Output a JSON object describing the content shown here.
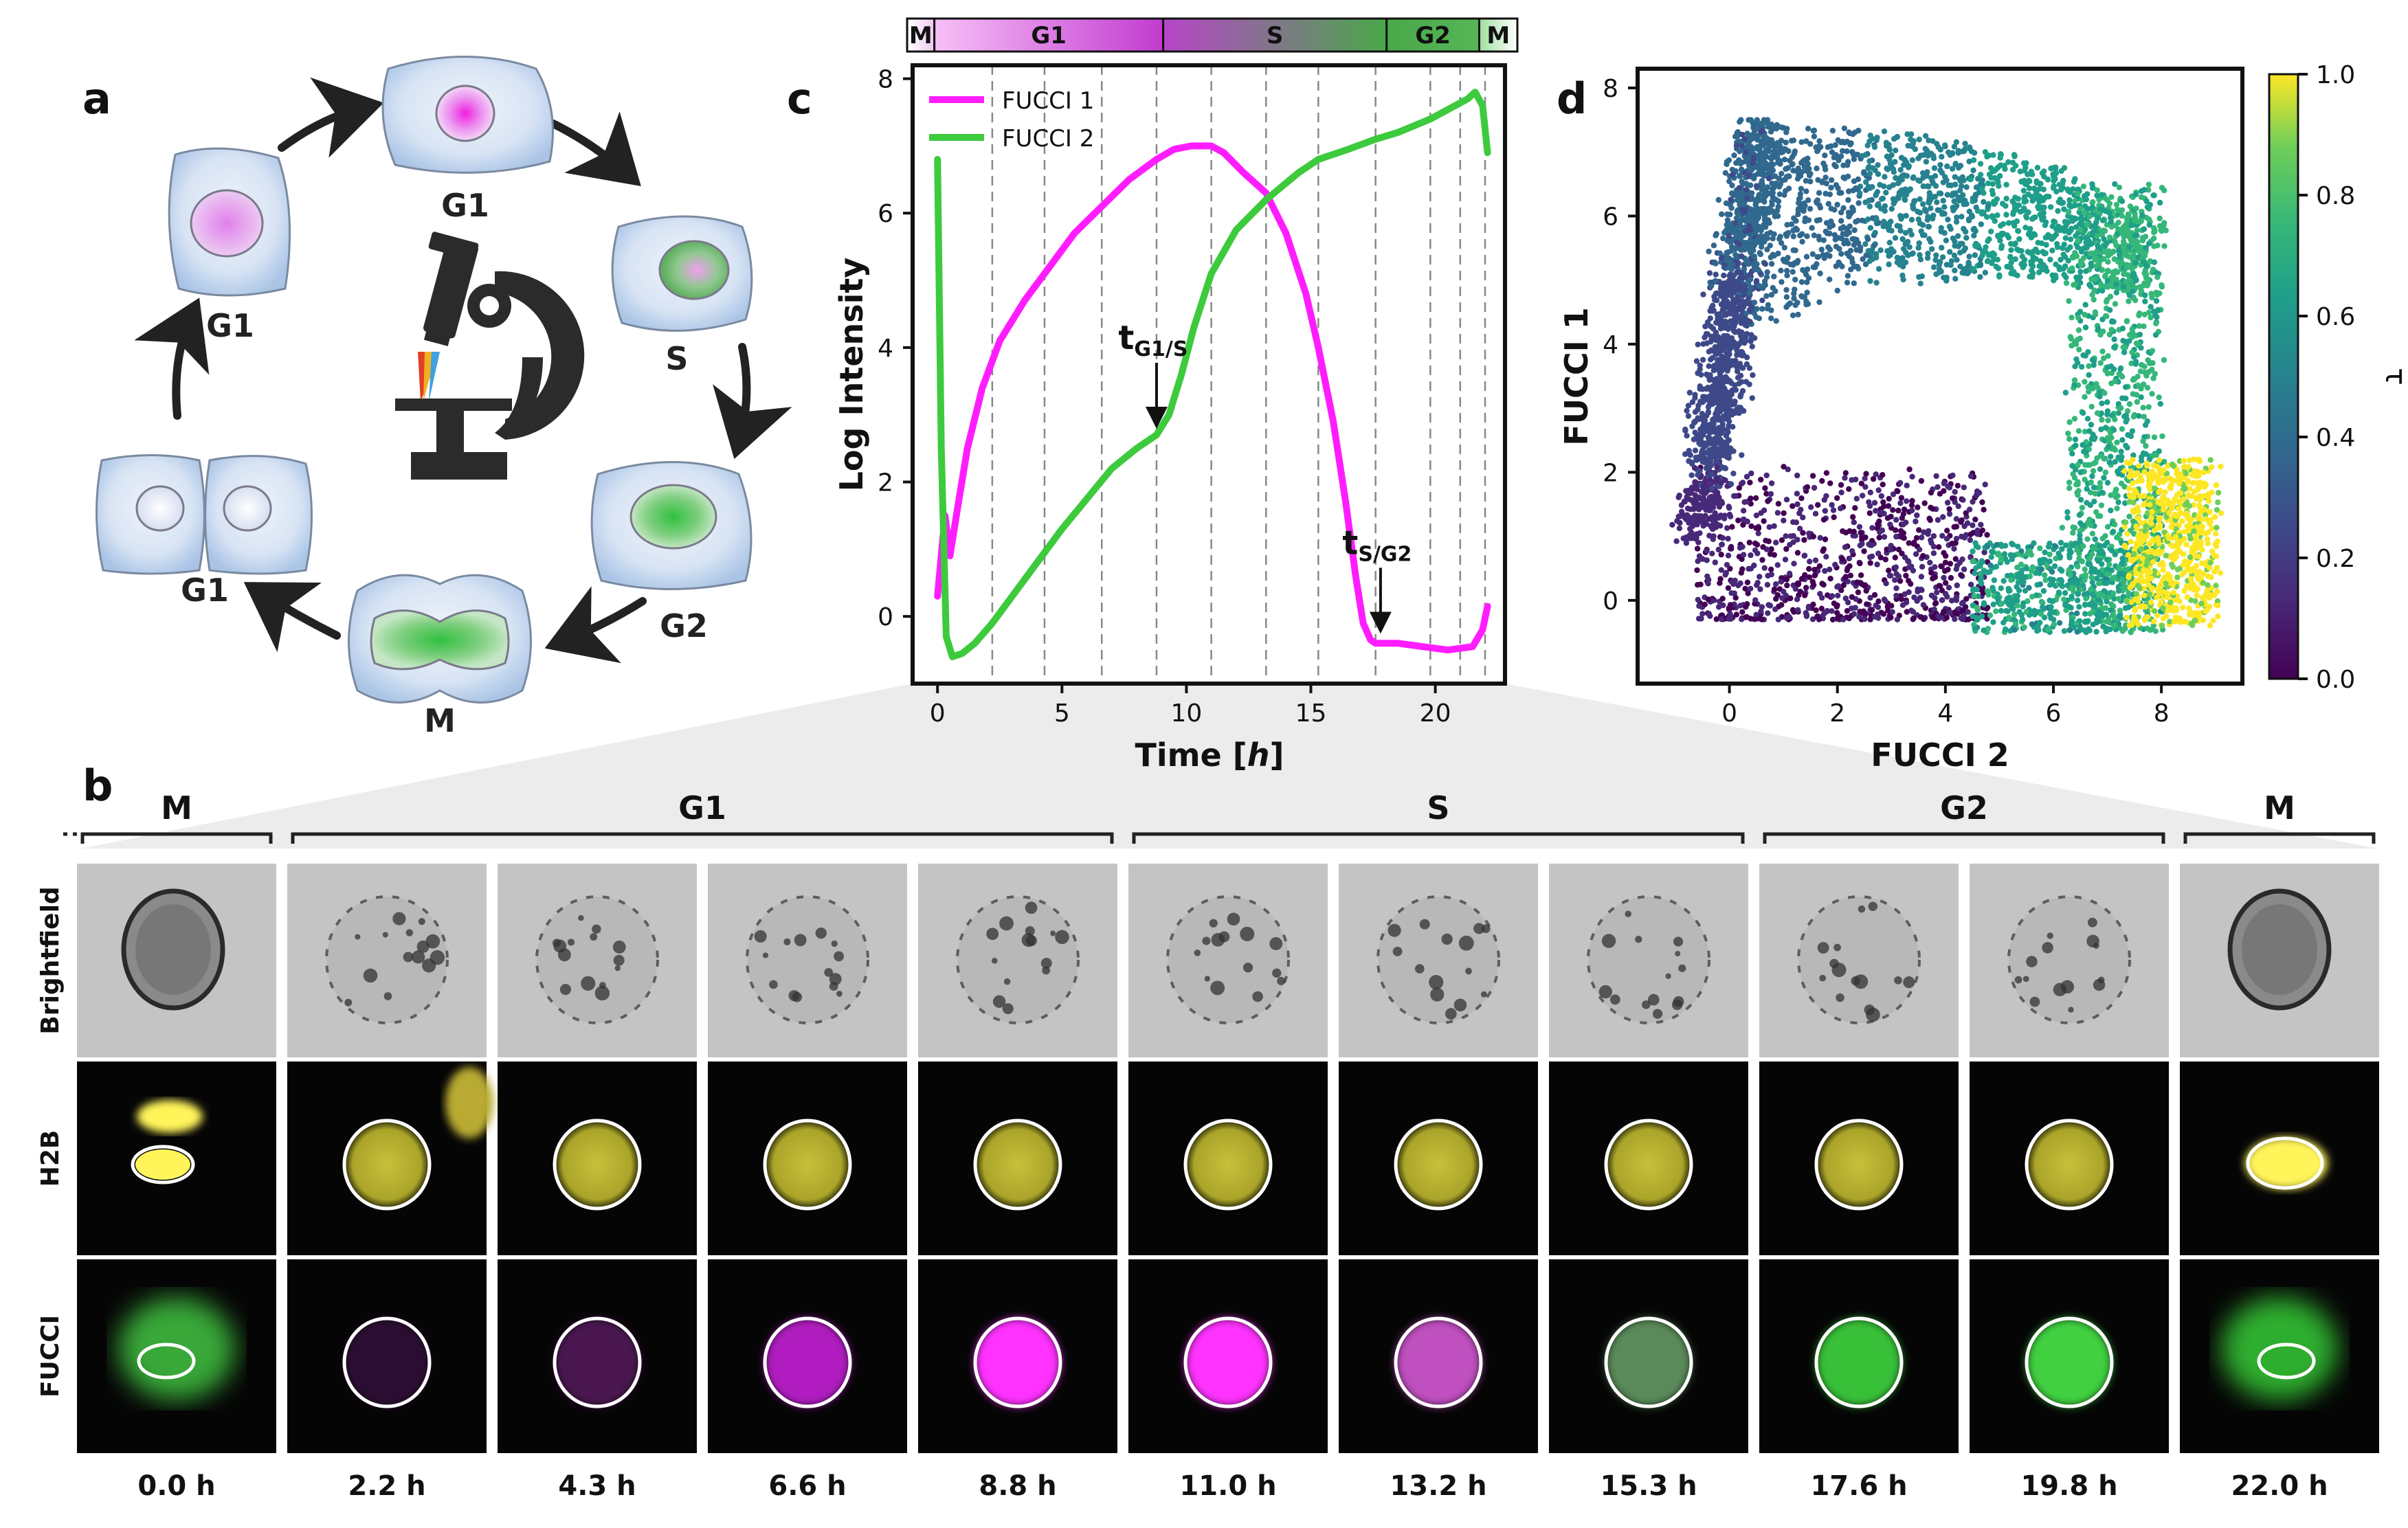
{
  "panels": {
    "a": "a",
    "b": "b",
    "c": "c",
    "d": "d"
  },
  "cycle": {
    "labels": [
      "G1",
      "S",
      "G2",
      "M",
      "G1",
      "G1"
    ]
  },
  "phase_bar": {
    "segments": [
      {
        "label": "M",
        "start": 0.0,
        "end": 1.0,
        "color_from": "#ffffff",
        "color_to": "#f0c8f0"
      },
      {
        "label": "G1",
        "start": 1.0,
        "end": 9.4,
        "color_from": "#f7c0f7",
        "color_to": "#c23bd0"
      },
      {
        "label": "S",
        "start": 9.4,
        "end": 17.6,
        "color_from": "#b745c8",
        "color_to": "#49a849"
      },
      {
        "label": "G2",
        "start": 17.6,
        "end": 21.0,
        "color_from": "#4aa84a",
        "color_to": "#56b556"
      },
      {
        "label": "M",
        "start": 21.0,
        "end": 22.4,
        "color_from": "#9fe09f",
        "color_to": "#ffffff"
      }
    ]
  },
  "chart_data": [
    {
      "type": "line",
      "panel": "c",
      "xlabel_main": "Time [",
      "xlabel_italic": "h",
      "xlabel_end": "]",
      "ylabel": "Log Intensity",
      "xlim": [
        -1.0,
        22.8
      ],
      "ylim": [
        -1.0,
        8.2
      ],
      "xticks": [
        0,
        5,
        10,
        15,
        20
      ],
      "yticks": [
        0,
        2,
        4,
        6,
        8
      ],
      "legend_position": "top-left",
      "grid_vlines": [
        2.2,
        4.3,
        6.6,
        8.8,
        11.0,
        13.2,
        15.3,
        17.6,
        19.8,
        21.0,
        22.0
      ],
      "series": [
        {
          "name": "FUCCI 1",
          "color": "#ff1dff",
          "x": [
            0,
            0.3,
            0.5,
            0.8,
            1.2,
            1.8,
            2.5,
            3.5,
            4.5,
            5.5,
            6.6,
            7.7,
            8.8,
            9.5,
            10.2,
            11.0,
            11.5,
            12.3,
            13.2,
            14.0,
            14.8,
            15.3,
            15.9,
            16.4,
            16.8,
            17.1,
            17.4,
            17.6,
            18.5,
            19.5,
            20.5,
            21.5,
            21.9,
            22.1
          ],
          "y": [
            0.3,
            1.5,
            0.9,
            1.6,
            2.5,
            3.4,
            4.1,
            4.7,
            5.2,
            5.7,
            6.1,
            6.5,
            6.8,
            6.95,
            7.0,
            7.0,
            6.9,
            6.6,
            6.3,
            5.7,
            4.8,
            4.0,
            2.9,
            1.7,
            0.6,
            -0.1,
            -0.35,
            -0.4,
            -0.4,
            -0.45,
            -0.5,
            -0.45,
            -0.2,
            0.15
          ]
        },
        {
          "name": "FUCCI 2",
          "color": "#3dca3d",
          "x": [
            0,
            0.15,
            0.35,
            0.6,
            1.0,
            1.5,
            2.2,
            3.0,
            4.0,
            5.0,
            6.0,
            7.0,
            8.0,
            8.8,
            9.3,
            9.8,
            10.3,
            11.0,
            12.0,
            13.2,
            14.5,
            15.3,
            16.5,
            17.6,
            18.5,
            19.8,
            20.8,
            21.3,
            21.6,
            21.9,
            22.1
          ],
          "y": [
            6.8,
            2.5,
            -0.3,
            -0.6,
            -0.55,
            -0.4,
            -0.1,
            0.3,
            0.8,
            1.3,
            1.75,
            2.2,
            2.5,
            2.7,
            3.0,
            3.6,
            4.3,
            5.1,
            5.75,
            6.2,
            6.6,
            6.8,
            6.95,
            7.1,
            7.2,
            7.4,
            7.6,
            7.7,
            7.8,
            7.6,
            6.9
          ]
        }
      ],
      "annotations": [
        {
          "base": "t",
          "sub": "G1/S",
          "x": 8.8,
          "y": 2.7
        },
        {
          "base": "t",
          "sub": "S/G2",
          "x": 17.8,
          "y": -0.35
        }
      ]
    },
    {
      "type": "scatter",
      "panel": "d",
      "xlabel": "FUCCI 2",
      "ylabel": "FUCCI 1",
      "xlim": [
        -1.7,
        9.5
      ],
      "ylim": [
        -1.3,
        8.3
      ],
      "xticks": [
        0,
        2,
        4,
        6,
        8
      ],
      "yticks": [
        0,
        2,
        4,
        6,
        8
      ],
      "colorbar": {
        "label": "τ",
        "range": [
          0.0,
          1.0
        ],
        "ticks": [
          "0.0",
          "0.2",
          "0.4",
          "0.6",
          "0.8",
          "1.0"
        ],
        "colormap": "viridis"
      }
    }
  ],
  "strip": {
    "groups": [
      {
        "label": "M",
        "start": 0,
        "end": 0
      },
      {
        "label": "G1",
        "start": 1,
        "end": 4
      },
      {
        "label": "S",
        "start": 5,
        "end": 7
      },
      {
        "label": "G2",
        "start": 8,
        "end": 9
      },
      {
        "label": "M",
        "start": 10,
        "end": 10
      }
    ],
    "rows": [
      "Brightfield",
      "H2B",
      "FUCCI"
    ],
    "times": [
      "0.0 h",
      "2.2 h",
      "4.3 h",
      "6.6 h",
      "8.8 h",
      "11.0 h",
      "13.2 h",
      "15.3 h",
      "17.6 h",
      "19.8 h",
      "22.0 h"
    ],
    "fucci_colors": [
      "#39a839",
      "#2a0830",
      "#4a1450",
      "#b01cc0",
      "#ff30ff",
      "#ff30ff",
      "#c050c0",
      "#5a8a5a",
      "#38c038",
      "#40d040",
      "#2fae2f"
    ]
  }
}
